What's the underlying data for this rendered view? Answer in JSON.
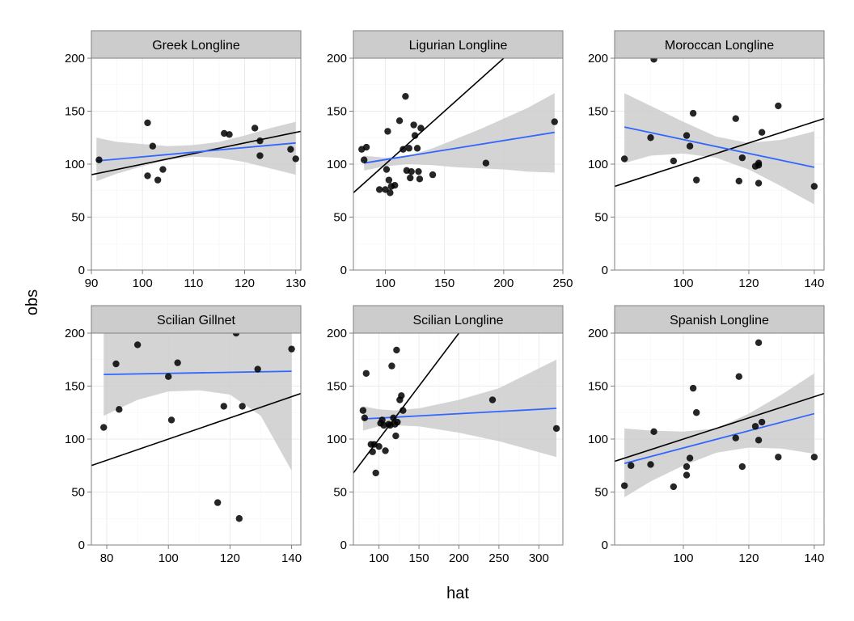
{
  "chart_data": {
    "type": "scatter",
    "xlabel": "hat",
    "ylabel": "obs",
    "grid": true,
    "layout": "facet 2 rows x 3 columns, free x scales",
    "colors": {
      "points": "#000000",
      "identity_line": "#000000",
      "fit_line": "#3366ff",
      "ribbon": "#cccccc",
      "strip": "#cccccc"
    },
    "panels": [
      {
        "title": "Greek Longline",
        "xlim": [
          90,
          131
        ],
        "ylim": [
          0,
          200
        ],
        "x_ticks": [
          90,
          100,
          110,
          120,
          130
        ],
        "y_ticks": [
          0,
          50,
          100,
          150,
          200
        ],
        "points": [
          [
            91.5,
            104
          ],
          [
            101,
            89
          ],
          [
            101,
            139
          ],
          [
            102,
            117
          ],
          [
            103,
            85
          ],
          [
            104,
            95
          ],
          [
            116,
            129
          ],
          [
            117,
            128
          ],
          [
            122,
            134
          ],
          [
            123,
            122
          ],
          [
            123,
            108
          ],
          [
            129,
            114
          ],
          [
            130,
            105
          ]
        ],
        "identity_line": true,
        "fit": {
          "x": [
            91,
            130
          ],
          "y": [
            103,
            120
          ]
        },
        "ribbon": {
          "x": [
            91,
            95,
            100,
            105,
            110,
            115,
            120,
            125,
            130
          ],
          "lo": [
            84,
            91,
            98,
            104,
            107,
            106,
            102,
            96,
            90
          ],
          "hi": [
            125,
            121,
            119,
            117,
            118,
            121,
            127,
            134,
            140
          ]
        }
      },
      {
        "title": "Ligurian Longline",
        "xlim": [
          73,
          250
        ],
        "ylim": [
          0,
          200
        ],
        "x_ticks": [
          100,
          150,
          200,
          250
        ],
        "y_ticks": [
          0,
          50,
          100,
          150,
          200
        ],
        "points": [
          [
            80,
            114
          ],
          [
            82,
            104
          ],
          [
            84,
            116
          ],
          [
            95,
            76
          ],
          [
            100,
            76
          ],
          [
            101,
            95
          ],
          [
            102,
            131
          ],
          [
            103,
            85
          ],
          [
            104,
            73
          ],
          [
            105,
            79
          ],
          [
            108,
            80
          ],
          [
            112,
            141
          ],
          [
            115,
            114
          ],
          [
            117,
            164
          ],
          [
            118,
            94
          ],
          [
            120,
            115
          ],
          [
            121,
            87
          ],
          [
            122,
            93
          ],
          [
            124,
            137
          ],
          [
            125,
            127
          ],
          [
            127,
            115
          ],
          [
            128,
            93
          ],
          [
            129,
            86
          ],
          [
            130,
            134
          ],
          [
            140,
            90
          ],
          [
            185,
            101
          ],
          [
            243,
            140
          ]
        ],
        "identity_line": true,
        "fit": {
          "x": [
            82,
            243
          ],
          "y": [
            101,
            130
          ]
        },
        "ribbon": {
          "x": [
            82,
            100,
            120,
            140,
            160,
            180,
            200,
            220,
            243
          ],
          "lo": [
            94,
            98,
            100,
            99,
            97,
            96,
            95,
            93,
            92
          ],
          "hi": [
            108,
            106,
            108,
            115,
            124,
            133,
            143,
            153,
            167
          ]
        }
      },
      {
        "title": "Moroccan Longline",
        "xlim": [
          79,
          143
        ],
        "ylim": [
          0,
          200
        ],
        "x_ticks": [
          100,
          120,
          140
        ],
        "y_ticks": [
          0,
          50,
          100,
          150,
          200
        ],
        "points": [
          [
            82,
            105
          ],
          [
            90,
            125
          ],
          [
            91,
            199
          ],
          [
            97,
            103
          ],
          [
            101,
            127
          ],
          [
            102,
            117
          ],
          [
            103,
            148
          ],
          [
            104,
            85
          ],
          [
            116,
            143
          ],
          [
            117,
            84
          ],
          [
            118,
            106
          ],
          [
            122,
            98
          ],
          [
            123,
            99
          ],
          [
            123,
            82
          ],
          [
            123,
            101
          ],
          [
            124,
            130
          ],
          [
            129,
            155
          ],
          [
            140,
            79
          ]
        ],
        "identity_line": true,
        "fit": {
          "x": [
            82,
            140
          ],
          "y": [
            135,
            97
          ]
        },
        "ribbon": {
          "x": [
            82,
            90,
            100,
            110,
            120,
            130,
            140
          ],
          "lo": [
            101,
            108,
            110,
            106,
            95,
            79,
            62
          ],
          "hi": [
            167,
            155,
            140,
            126,
            120,
            123,
            131
          ]
        }
      },
      {
        "title": "Scilian Gillnet",
        "xlim": [
          75,
          143
        ],
        "ylim": [
          0,
          200
        ],
        "x_ticks": [
          80,
          100,
          120,
          140
        ],
        "y_ticks": [
          0,
          50,
          100,
          150,
          200
        ],
        "points": [
          [
            79,
            111
          ],
          [
            83,
            171
          ],
          [
            84,
            128
          ],
          [
            90,
            189
          ],
          [
            100,
            159
          ],
          [
            101,
            118
          ],
          [
            103,
            172
          ],
          [
            116,
            40
          ],
          [
            118,
            131
          ],
          [
            122,
            200
          ],
          [
            123,
            25
          ],
          [
            124,
            131
          ],
          [
            129,
            166
          ],
          [
            140,
            185
          ]
        ],
        "identity_line": true,
        "fit": {
          "x": [
            79,
            140
          ],
          "y": [
            161,
            164
          ]
        },
        "ribbon": {
          "x": [
            79,
            90,
            100,
            110,
            120,
            130,
            140
          ],
          "lo": [
            122,
            137,
            145,
            146,
            142,
            122,
            70
          ],
          "hi": [
            200,
            200,
            200,
            200,
            200,
            200,
            200
          ]
        }
      },
      {
        "title": "Scilian Longline",
        "xlim": [
          68,
          330
        ],
        "ylim": [
          0,
          200
        ],
        "x_ticks": [
          100,
          150,
          200,
          250,
          300
        ],
        "y_ticks": [
          0,
          50,
          100,
          150,
          200
        ],
        "points": [
          [
            80,
            127
          ],
          [
            82,
            120
          ],
          [
            84,
            162
          ],
          [
            90,
            95
          ],
          [
            92,
            88
          ],
          [
            94,
            95
          ],
          [
            96,
            68
          ],
          [
            100,
            93
          ],
          [
            102,
            115
          ],
          [
            104,
            118
          ],
          [
            106,
            113
          ],
          [
            108,
            89
          ],
          [
            112,
            114
          ],
          [
            114,
            113
          ],
          [
            116,
            169
          ],
          [
            118,
            120
          ],
          [
            120,
            114
          ],
          [
            121,
            103
          ],
          [
            122,
            184
          ],
          [
            123,
            116
          ],
          [
            126,
            137
          ],
          [
            128,
            141
          ],
          [
            130,
            127
          ],
          [
            242,
            137
          ],
          [
            322,
            110
          ]
        ],
        "identity_line": true,
        "fit": {
          "x": [
            80,
            322
          ],
          "y": [
            119,
            129
          ]
        },
        "ribbon": {
          "x": [
            80,
            100,
            120,
            150,
            200,
            250,
            322
          ],
          "lo": [
            108,
            112,
            113,
            112,
            106,
            98,
            83
          ],
          "hi": [
            131,
            128,
            127,
            129,
            137,
            148,
            175
          ]
        }
      },
      {
        "title": "Spanish Longline",
        "xlim": [
          79,
          143
        ],
        "ylim": [
          0,
          200
        ],
        "x_ticks": [
          100,
          120,
          140
        ],
        "y_ticks": [
          0,
          50,
          100,
          150,
          200
        ],
        "points": [
          [
            82,
            56
          ],
          [
            84,
            75
          ],
          [
            90,
            76
          ],
          [
            91,
            107
          ],
          [
            97,
            55
          ],
          [
            101,
            74
          ],
          [
            101,
            66
          ],
          [
            102,
            82
          ],
          [
            103,
            148
          ],
          [
            104,
            125
          ],
          [
            116,
            101
          ],
          [
            117,
            159
          ],
          [
            118,
            74
          ],
          [
            122,
            112
          ],
          [
            123,
            191
          ],
          [
            123,
            99
          ],
          [
            124,
            116
          ],
          [
            129,
            83
          ],
          [
            140,
            83
          ]
        ],
        "identity_line": true,
        "fit": {
          "x": [
            82,
            140
          ],
          "y": [
            77,
            124
          ]
        },
        "ribbon": {
          "x": [
            82,
            90,
            100,
            110,
            120,
            130,
            140
          ],
          "lo": [
            45,
            60,
            75,
            87,
            92,
            91,
            86
          ],
          "hi": [
            110,
            108,
            107,
            110,
            124,
            142,
            162
          ]
        }
      }
    ]
  }
}
